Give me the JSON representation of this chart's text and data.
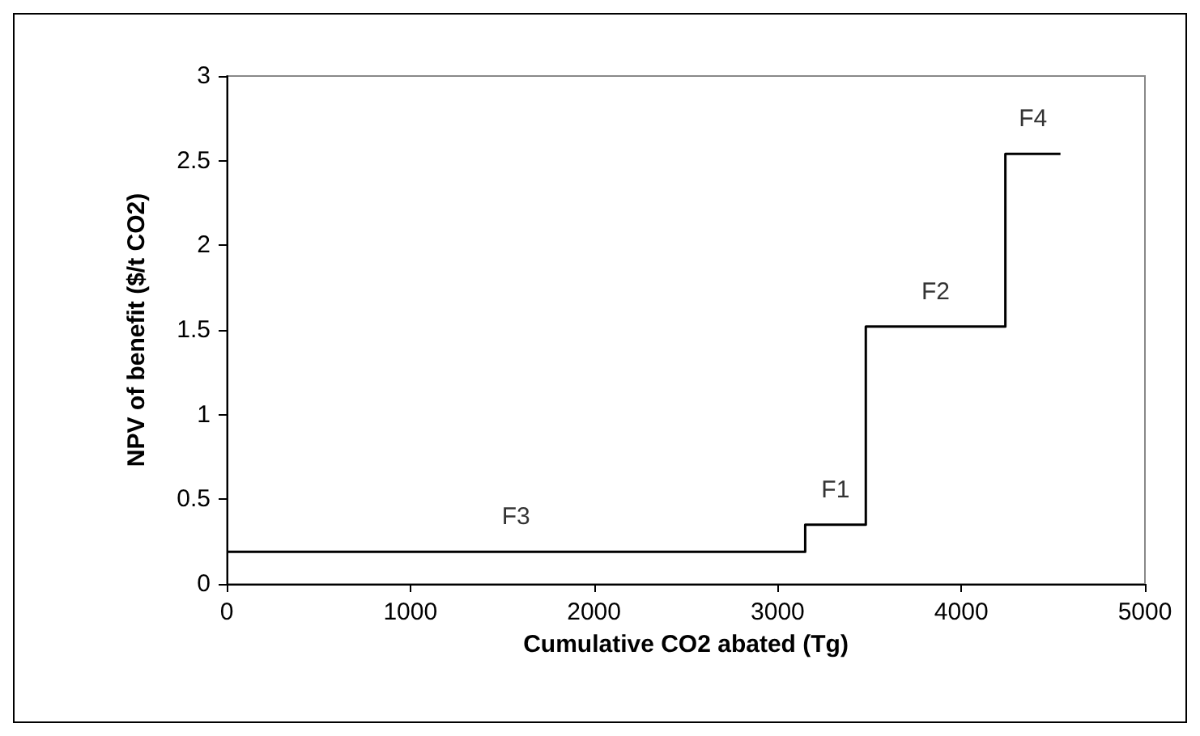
{
  "chart_data": {
    "type": "step",
    "xlabel": "Cumulative CO2 abated (Tg)",
    "ylabel": "NPV of benefit ($/t CO2)",
    "x": [
      0,
      3150,
      3480,
      4240,
      4540
    ],
    "values": [
      0.19,
      0.35,
      1.52,
      2.54,
      2.54
    ],
    "color": "#000000",
    "xlim": [
      0,
      5000
    ],
    "xticks": [
      0,
      1000,
      2000,
      3000,
      4000,
      5000
    ],
    "ylim": [
      0,
      3
    ],
    "yticks": [
      0,
      0.5,
      1,
      1.5,
      2,
      2.5,
      3
    ],
    "grid": false,
    "marker": "none",
    "line_style": "solid",
    "annotations": [
      "F3",
      "F1",
      "F2",
      "F4"
    ]
  }
}
